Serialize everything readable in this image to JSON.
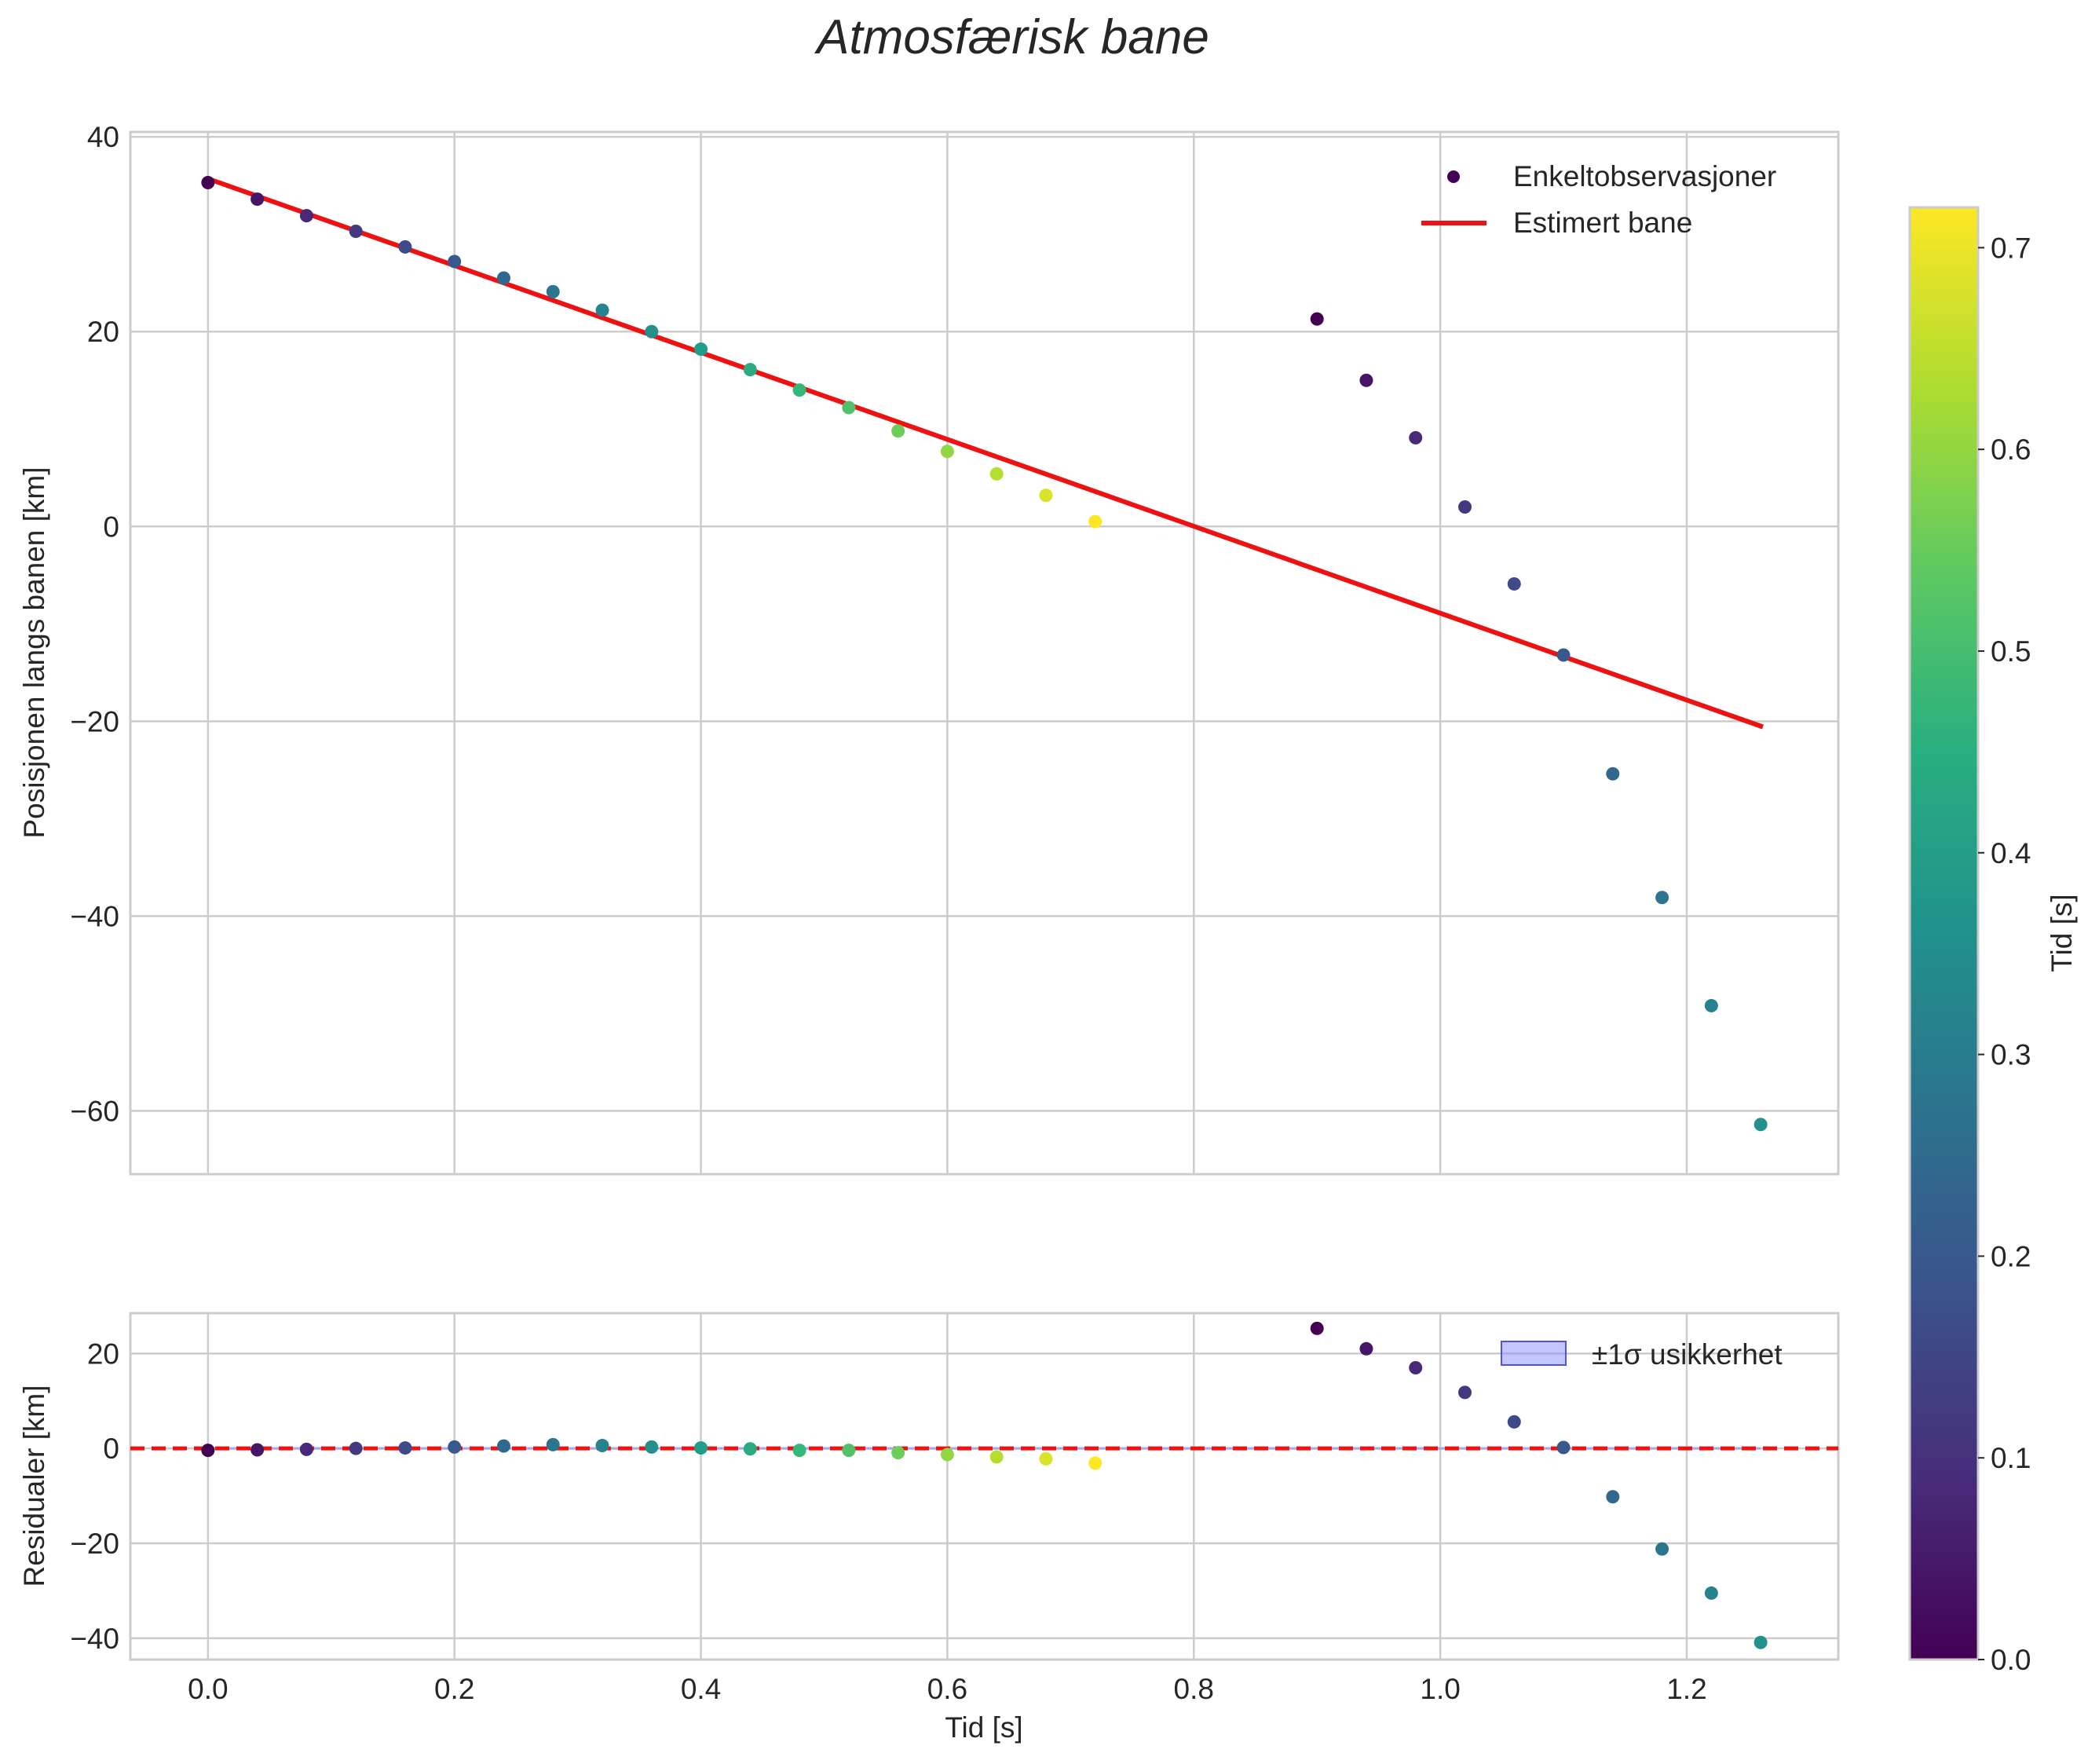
{
  "chart_data": {
    "title": "Atmosfærisk bane",
    "colormap": "viridis",
    "colorbar": {
      "label": "Tid [s]",
      "range": [
        0.0,
        0.72
      ],
      "ticks": [
        "0.0",
        "0.1",
        "0.2",
        "0.3",
        "0.4",
        "0.5",
        "0.6",
        "0.7"
      ],
      "tick_values": [
        0.0,
        0.1,
        0.2,
        0.3,
        0.4,
        0.5,
        0.6,
        0.7
      ]
    },
    "top": {
      "type": "scatter",
      "ylabel": "Posisjonen langs banen [km]",
      "xlim": [
        -0.063,
        1.323
      ],
      "ylim": [
        -66.5,
        40.5
      ],
      "xticks": [
        0.0,
        0.2,
        0.4,
        0.6,
        0.8,
        1.0,
        1.2
      ],
      "yticks": [
        -60,
        -40,
        -20,
        0,
        20,
        40
      ],
      "ytick_labels": [
        "−60",
        "−40",
        "−20",
        "0",
        "20",
        "40"
      ],
      "grid": true,
      "legend_position": "top-right",
      "legend": {
        "scatter": "Enkeltobservasjoner",
        "line": "Estimert bane"
      },
      "line_color": "#ee1111",
      "fit_line": {
        "x": [
          0.0,
          1.26
        ],
        "y": [
          35.7,
          -20.5
        ]
      },
      "points": [
        {
          "x": 0.0,
          "y": 35.3,
          "c": 0.0
        },
        {
          "x": 0.04,
          "y": 33.6,
          "c": 0.04
        },
        {
          "x": 0.08,
          "y": 31.9,
          "c": 0.08
        },
        {
          "x": 0.12,
          "y": 30.3,
          "c": 0.12
        },
        {
          "x": 0.16,
          "y": 28.7,
          "c": 0.16
        },
        {
          "x": 0.2,
          "y": 27.2,
          "c": 0.2
        },
        {
          "x": 0.24,
          "y": 25.5,
          "c": 0.24
        },
        {
          "x": 0.28,
          "y": 24.1,
          "c": 0.28
        },
        {
          "x": 0.32,
          "y": 22.2,
          "c": 0.32
        },
        {
          "x": 0.36,
          "y": 20.0,
          "c": 0.36
        },
        {
          "x": 0.4,
          "y": 18.2,
          "c": 0.4
        },
        {
          "x": 0.44,
          "y": 16.1,
          "c": 0.44
        },
        {
          "x": 0.48,
          "y": 14.0,
          "c": 0.48
        },
        {
          "x": 0.52,
          "y": 12.2,
          "c": 0.52
        },
        {
          "x": 0.56,
          "y": 9.8,
          "c": 0.56
        },
        {
          "x": 0.6,
          "y": 7.7,
          "c": 0.6
        },
        {
          "x": 0.64,
          "y": 5.4,
          "c": 0.64
        },
        {
          "x": 0.68,
          "y": 3.2,
          "c": 0.68
        },
        {
          "x": 0.72,
          "y": 0.5,
          "c": 0.72
        },
        {
          "x": 0.9,
          "y": 21.3,
          "c": 0.0
        },
        {
          "x": 0.94,
          "y": 15.0,
          "c": 0.04
        },
        {
          "x": 0.98,
          "y": 9.1,
          "c": 0.08
        },
        {
          "x": 1.02,
          "y": 2.0,
          "c": 0.12
        },
        {
          "x": 1.06,
          "y": -5.9,
          "c": 0.16
        },
        {
          "x": 1.1,
          "y": -13.2,
          "c": 0.2
        },
        {
          "x": 1.14,
          "y": -25.4,
          "c": 0.24
        },
        {
          "x": 1.18,
          "y": -38.1,
          "c": 0.28
        },
        {
          "x": 1.22,
          "y": -49.2,
          "c": 0.32
        },
        {
          "x": 1.26,
          "y": -61.4,
          "c": 0.36
        }
      ]
    },
    "bottom": {
      "type": "scatter",
      "xlabel": "Tid [s]",
      "ylabel": "Residualer [km]",
      "xlim": [
        -0.063,
        1.323
      ],
      "ylim": [
        -44.5,
        28.5
      ],
      "xticks": [
        0.0,
        0.2,
        0.4,
        0.6,
        0.8,
        1.0,
        1.2
      ],
      "xtick_labels": [
        "0.0",
        "0.2",
        "0.4",
        "0.6",
        "0.8",
        "1.0",
        "1.2"
      ],
      "yticks": [
        -40,
        -20,
        0,
        20
      ],
      "ytick_labels": [
        "−40",
        "−20",
        "0",
        "20"
      ],
      "grid": true,
      "legend_position": "top-right",
      "legend": {
        "band": "±1σ usikkerhet"
      },
      "band_color": "#8080ff",
      "zero_line_color": "#ee1111",
      "sigma": 0.3,
      "points": [
        {
          "x": 0.0,
          "y": -0.4,
          "c": 0.0
        },
        {
          "x": 0.04,
          "y": -0.3,
          "c": 0.04
        },
        {
          "x": 0.08,
          "y": -0.2,
          "c": 0.08
        },
        {
          "x": 0.12,
          "y": 0.0,
          "c": 0.12
        },
        {
          "x": 0.16,
          "y": 0.1,
          "c": 0.16
        },
        {
          "x": 0.2,
          "y": 0.3,
          "c": 0.2
        },
        {
          "x": 0.24,
          "y": 0.5,
          "c": 0.24
        },
        {
          "x": 0.28,
          "y": 0.8,
          "c": 0.28
        },
        {
          "x": 0.32,
          "y": 0.6,
          "c": 0.32
        },
        {
          "x": 0.36,
          "y": 0.3,
          "c": 0.36
        },
        {
          "x": 0.4,
          "y": 0.1,
          "c": 0.4
        },
        {
          "x": 0.44,
          "y": -0.1,
          "c": 0.44
        },
        {
          "x": 0.48,
          "y": -0.4,
          "c": 0.48
        },
        {
          "x": 0.52,
          "y": -0.4,
          "c": 0.52
        },
        {
          "x": 0.56,
          "y": -0.9,
          "c": 0.56
        },
        {
          "x": 0.6,
          "y": -1.3,
          "c": 0.6
        },
        {
          "x": 0.64,
          "y": -1.8,
          "c": 0.64
        },
        {
          "x": 0.68,
          "y": -2.2,
          "c": 0.68
        },
        {
          "x": 0.72,
          "y": -3.1,
          "c": 0.72
        },
        {
          "x": 0.9,
          "y": 25.3,
          "c": 0.0
        },
        {
          "x": 0.94,
          "y": 21.0,
          "c": 0.04
        },
        {
          "x": 0.98,
          "y": 17.0,
          "c": 0.08
        },
        {
          "x": 1.02,
          "y": 11.8,
          "c": 0.12
        },
        {
          "x": 1.06,
          "y": 5.6,
          "c": 0.16
        },
        {
          "x": 1.1,
          "y": 0.2,
          "c": 0.2
        },
        {
          "x": 1.14,
          "y": -10.2,
          "c": 0.24
        },
        {
          "x": 1.18,
          "y": -21.2,
          "c": 0.28
        },
        {
          "x": 1.22,
          "y": -30.5,
          "c": 0.32
        },
        {
          "x": 1.26,
          "y": -40.9,
          "c": 0.36
        }
      ]
    }
  }
}
